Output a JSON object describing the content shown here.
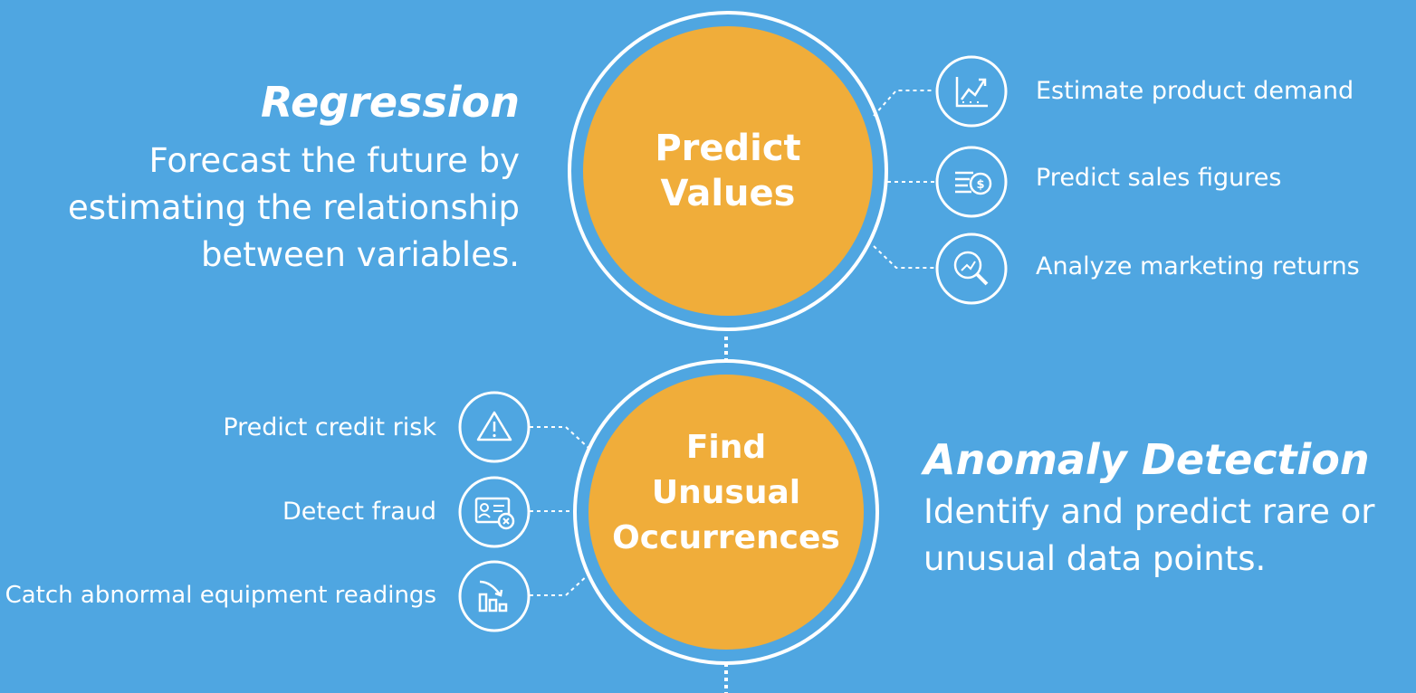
{
  "regression": {
    "heading": "Regression",
    "desc_lines": [
      "Forecast the future by",
      "estimating the relationship",
      "between variables."
    ],
    "circle_lines": [
      "Predict",
      "Values"
    ],
    "examples": [
      {
        "label": "Estimate product demand",
        "icon": "line-chart-icon"
      },
      {
        "label": "Predict sales figures",
        "icon": "money-stack-icon"
      },
      {
        "label": "Analyze marketing returns",
        "icon": "magnify-trend-icon"
      }
    ]
  },
  "anomaly": {
    "heading": "Anomaly Detection",
    "desc_lines": [
      "Identify and predict rare or",
      "unusual data points."
    ],
    "circle_lines": [
      "Find",
      "Unusual",
      "Occurrences"
    ],
    "examples": [
      {
        "label": "Predict credit risk",
        "icon": "warning-icon"
      },
      {
        "label": "Detect fraud",
        "icon": "id-card-fraud-icon"
      },
      {
        "label": "Catch abnormal equipment readings",
        "icon": "bar-chart-down-icon"
      }
    ]
  },
  "colors": {
    "background": "#4fa6e1",
    "circle_fill": "#f0ad3a",
    "outline": "#ffffff"
  }
}
